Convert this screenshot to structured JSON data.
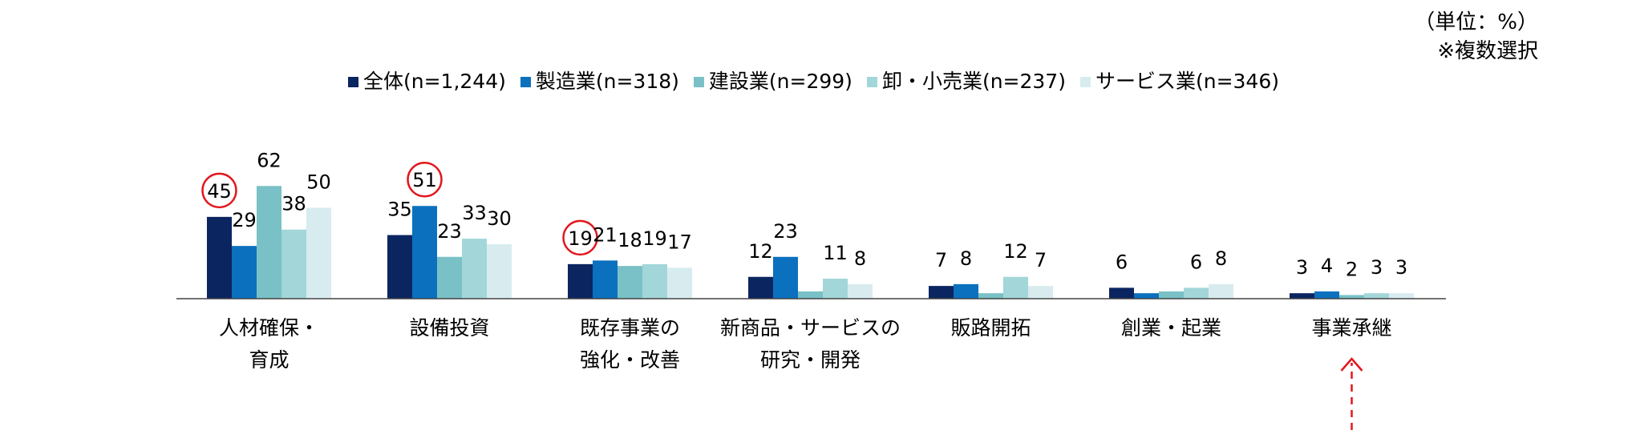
{
  "unit_note": {
    "line1": "（単位：%）",
    "line2": "※複数選択"
  },
  "colors": {
    "series": [
      "#0b2560",
      "#0b70be",
      "#79c1c6",
      "#a3d6d8",
      "#d8ecef"
    ],
    "highlight": "#e3161c",
    "axis": "#444444"
  },
  "chart_data": {
    "type": "bar",
    "categories": [
      [
        "人材確保・",
        "育成"
      ],
      [
        "設備投資"
      ],
      [
        "既存事業の",
        "強化・改善"
      ],
      [
        "新商品・サービスの",
        "研究・開発"
      ],
      [
        "販路開拓"
      ],
      [
        "創業・起業"
      ],
      [
        "事業承継"
      ]
    ],
    "series": [
      {
        "name": "全体(n=1,244)",
        "values": [
          45,
          35,
          19,
          12,
          7,
          6,
          3
        ]
      },
      {
        "name": "製造業(n=318)",
        "values": [
          29,
          51,
          21,
          23,
          8,
          3,
          4
        ]
      },
      {
        "name": "建設業(n=299)",
        "values": [
          62,
          23,
          18,
          4,
          3,
          4,
          2
        ]
      },
      {
        "name": "卸・小売業(n=237)",
        "values": [
          38,
          33,
          19,
          11,
          12,
          6,
          3
        ]
      },
      {
        "name": "サービス業(n=346)",
        "values": [
          50,
          30,
          17,
          8,
          7,
          8,
          3
        ]
      }
    ],
    "data_labels": [
      [
        "45",
        "29",
        "62",
        "38",
        "50"
      ],
      [
        "35",
        "51",
        "23",
        "33",
        "30"
      ],
      [
        "19",
        "21",
        "18",
        "19",
        "17"
      ],
      [
        "12",
        "23",
        "",
        "11",
        "8"
      ],
      [
        "7",
        "8",
        "",
        "12",
        "7"
      ],
      [
        "6",
        "",
        "",
        "6",
        "8"
      ],
      [
        "3",
        "4",
        "2",
        "3",
        "3"
      ]
    ],
    "circled_labels": [
      [
        0,
        0
      ],
      [
        1,
        1
      ],
      [
        2,
        0
      ]
    ],
    "arrow_category": 6,
    "ylim": [
      0,
      70
    ],
    "xlabel": "",
    "ylabel": "",
    "grid": false,
    "legend_position": "top"
  }
}
